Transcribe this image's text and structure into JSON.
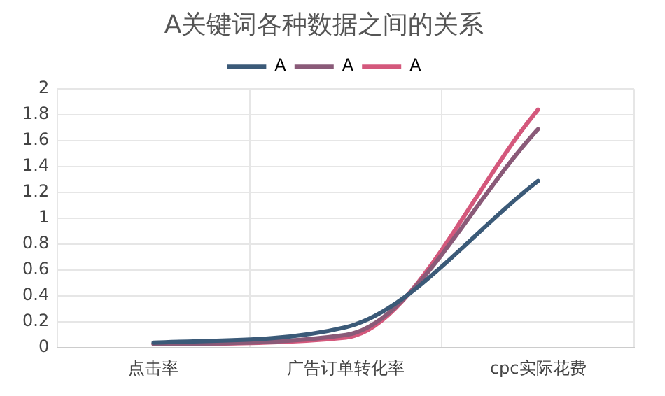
{
  "chart_data": {
    "type": "line",
    "title": "A关键词各种数据之间的关系",
    "categories": [
      "点击率",
      "广告订单转化率",
      "cpc实际花费"
    ],
    "series": [
      {
        "name": "A",
        "color": "#3b5a78",
        "values": [
          0.04,
          0.16,
          1.29
        ]
      },
      {
        "name": "A",
        "color": "#8a5a78",
        "values": [
          0.03,
          0.1,
          1.69
        ]
      },
      {
        "name": "A",
        "color": "#d4587c",
        "values": [
          0.03,
          0.08,
          1.84
        ]
      }
    ],
    "ylim": [
      0,
      2
    ],
    "yticks": [
      0,
      0.2,
      0.4,
      0.6,
      0.8,
      1,
      1.2,
      1.4,
      1.6,
      1.8,
      2
    ],
    "grid": true,
    "legend": "top",
    "marker": "none",
    "line_style": "solid"
  }
}
